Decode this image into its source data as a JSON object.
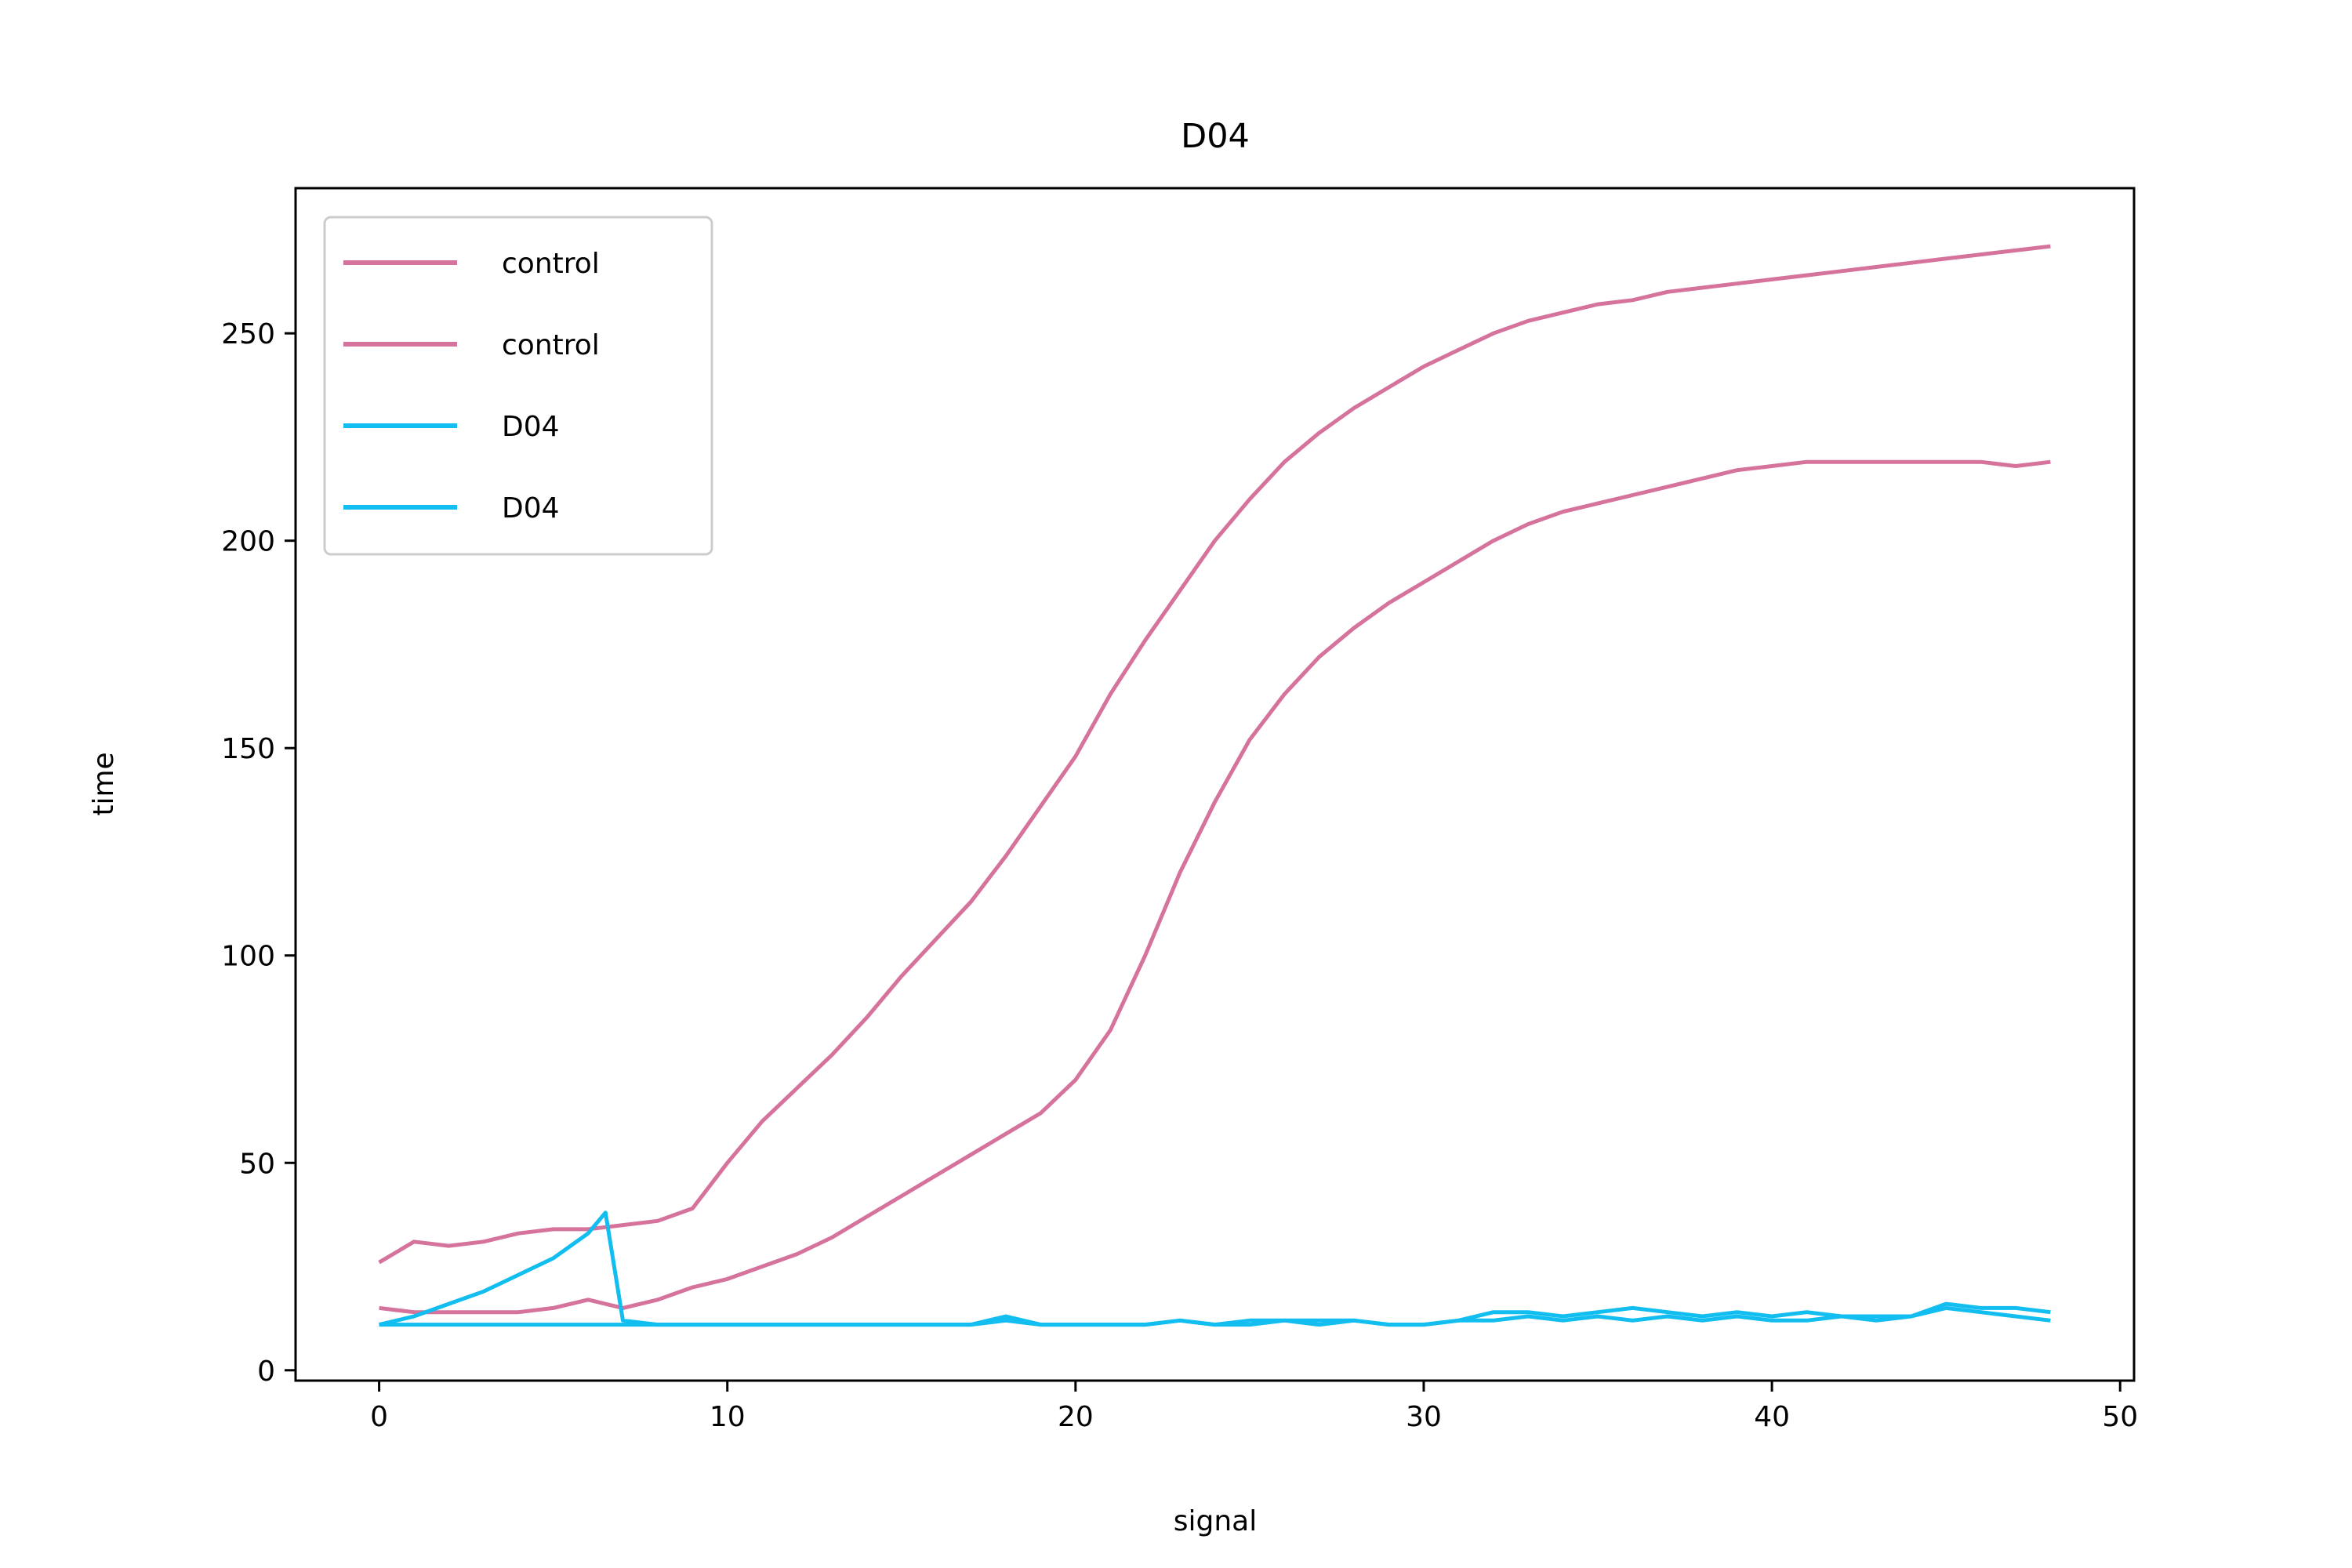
{
  "chart_data": {
    "type": "line",
    "title": "D04",
    "xlabel": "signal",
    "ylabel": "time",
    "xlim": [
      -2.4,
      50.4
    ],
    "ylim": [
      -2.5,
      285
    ],
    "x_ticks": [
      0,
      10,
      20,
      30,
      40,
      50
    ],
    "y_ticks": [
      0,
      50,
      100,
      150,
      200,
      250
    ],
    "grid": false,
    "legend_position": "upper-left",
    "colors": {
      "control": "#d5739d",
      "D04": "#12bdf0"
    },
    "series": [
      {
        "name": "control",
        "group": "control",
        "points": [
          [
            0,
            26
          ],
          [
            1,
            31
          ],
          [
            2,
            30
          ],
          [
            3,
            31
          ],
          [
            4,
            33
          ],
          [
            5,
            34
          ],
          [
            6,
            34
          ],
          [
            7,
            35
          ],
          [
            8,
            36
          ],
          [
            9,
            39
          ],
          [
            10,
            50
          ],
          [
            11,
            60
          ],
          [
            12,
            68
          ],
          [
            13,
            76
          ],
          [
            14,
            85
          ],
          [
            15,
            95
          ],
          [
            16,
            104
          ],
          [
            17,
            113
          ],
          [
            18,
            124
          ],
          [
            19,
            136
          ],
          [
            20,
            148
          ],
          [
            21,
            163
          ],
          [
            22,
            176
          ],
          [
            23,
            188
          ],
          [
            24,
            200
          ],
          [
            25,
            210
          ],
          [
            26,
            219
          ],
          [
            27,
            226
          ],
          [
            28,
            232
          ],
          [
            29,
            237
          ],
          [
            30,
            242
          ],
          [
            31,
            246
          ],
          [
            32,
            250
          ],
          [
            33,
            253
          ],
          [
            34,
            255
          ],
          [
            35,
            257
          ],
          [
            36,
            258
          ],
          [
            37,
            260
          ],
          [
            38,
            261
          ],
          [
            39,
            262
          ],
          [
            40,
            263
          ],
          [
            41,
            264
          ],
          [
            42,
            265
          ],
          [
            43,
            266
          ],
          [
            44,
            267
          ],
          [
            45,
            268
          ],
          [
            46,
            269
          ],
          [
            47,
            270
          ],
          [
            48,
            271
          ]
        ]
      },
      {
        "name": "control",
        "group": "control",
        "points": [
          [
            0,
            15
          ],
          [
            1,
            14
          ],
          [
            2,
            14
          ],
          [
            3,
            14
          ],
          [
            4,
            14
          ],
          [
            5,
            15
          ],
          [
            6,
            17
          ],
          [
            7,
            15
          ],
          [
            8,
            17
          ],
          [
            9,
            20
          ],
          [
            10,
            22
          ],
          [
            11,
            25
          ],
          [
            12,
            28
          ],
          [
            13,
            32
          ],
          [
            14,
            37
          ],
          [
            15,
            42
          ],
          [
            16,
            47
          ],
          [
            17,
            52
          ],
          [
            18,
            57
          ],
          [
            19,
            62
          ],
          [
            20,
            70
          ],
          [
            21,
            82
          ],
          [
            22,
            100
          ],
          [
            23,
            120
          ],
          [
            24,
            137
          ],
          [
            25,
            152
          ],
          [
            26,
            163
          ],
          [
            27,
            172
          ],
          [
            28,
            179
          ],
          [
            29,
            185
          ],
          [
            30,
            190
          ],
          [
            31,
            195
          ],
          [
            32,
            200
          ],
          [
            33,
            204
          ],
          [
            34,
            207
          ],
          [
            35,
            209
          ],
          [
            36,
            211
          ],
          [
            37,
            213
          ],
          [
            38,
            215
          ],
          [
            39,
            217
          ],
          [
            40,
            218
          ],
          [
            41,
            219
          ],
          [
            42,
            219
          ],
          [
            43,
            219
          ],
          [
            44,
            219
          ],
          [
            45,
            219
          ],
          [
            46,
            219
          ],
          [
            47,
            218
          ],
          [
            48,
            219
          ]
        ]
      },
      {
        "name": "D04",
        "group": "D04",
        "points": [
          [
            0,
            11
          ],
          [
            1,
            13
          ],
          [
            2,
            16
          ],
          [
            3,
            19
          ],
          [
            4,
            23
          ],
          [
            5,
            27
          ],
          [
            6,
            33
          ],
          [
            6.5,
            38
          ],
          [
            7,
            12
          ],
          [
            8,
            11
          ],
          [
            10,
            11
          ],
          [
            15,
            11
          ],
          [
            17,
            11
          ],
          [
            18,
            12
          ],
          [
            19,
            11
          ],
          [
            20,
            11
          ],
          [
            21,
            11
          ],
          [
            22,
            11
          ],
          [
            23,
            12
          ],
          [
            24,
            11
          ],
          [
            25,
            12
          ],
          [
            26,
            12
          ],
          [
            27,
            11
          ],
          [
            28,
            12
          ],
          [
            29,
            11
          ],
          [
            30,
            11
          ],
          [
            31,
            12
          ],
          [
            32,
            12
          ],
          [
            33,
            13
          ],
          [
            34,
            12
          ],
          [
            35,
            13
          ],
          [
            36,
            12
          ],
          [
            37,
            13
          ],
          [
            38,
            12
          ],
          [
            39,
            13
          ],
          [
            40,
            12
          ],
          [
            41,
            12
          ],
          [
            42,
            13
          ],
          [
            43,
            12
          ],
          [
            44,
            13
          ],
          [
            45,
            15
          ],
          [
            46,
            14
          ],
          [
            47,
            13
          ],
          [
            48,
            12
          ]
        ]
      },
      {
        "name": "D04",
        "group": "D04",
        "points": [
          [
            0,
            11
          ],
          [
            5,
            11
          ],
          [
            10,
            11
          ],
          [
            15,
            11
          ],
          [
            17,
            11
          ],
          [
            18,
            13
          ],
          [
            19,
            11
          ],
          [
            20,
            11
          ],
          [
            21,
            11
          ],
          [
            22,
            11
          ],
          [
            23,
            12
          ],
          [
            24,
            11
          ],
          [
            25,
            11
          ],
          [
            26,
            12
          ],
          [
            27,
            12
          ],
          [
            28,
            12
          ],
          [
            29,
            11
          ],
          [
            30,
            11
          ],
          [
            31,
            12
          ],
          [
            32,
            14
          ],
          [
            33,
            14
          ],
          [
            34,
            13
          ],
          [
            35,
            14
          ],
          [
            36,
            15
          ],
          [
            37,
            14
          ],
          [
            38,
            13
          ],
          [
            39,
            14
          ],
          [
            40,
            13
          ],
          [
            41,
            14
          ],
          [
            42,
            13
          ],
          [
            43,
            13
          ],
          [
            44,
            13
          ],
          [
            45,
            16
          ],
          [
            46,
            15
          ],
          [
            47,
            15
          ],
          [
            48,
            14
          ]
        ]
      }
    ]
  }
}
